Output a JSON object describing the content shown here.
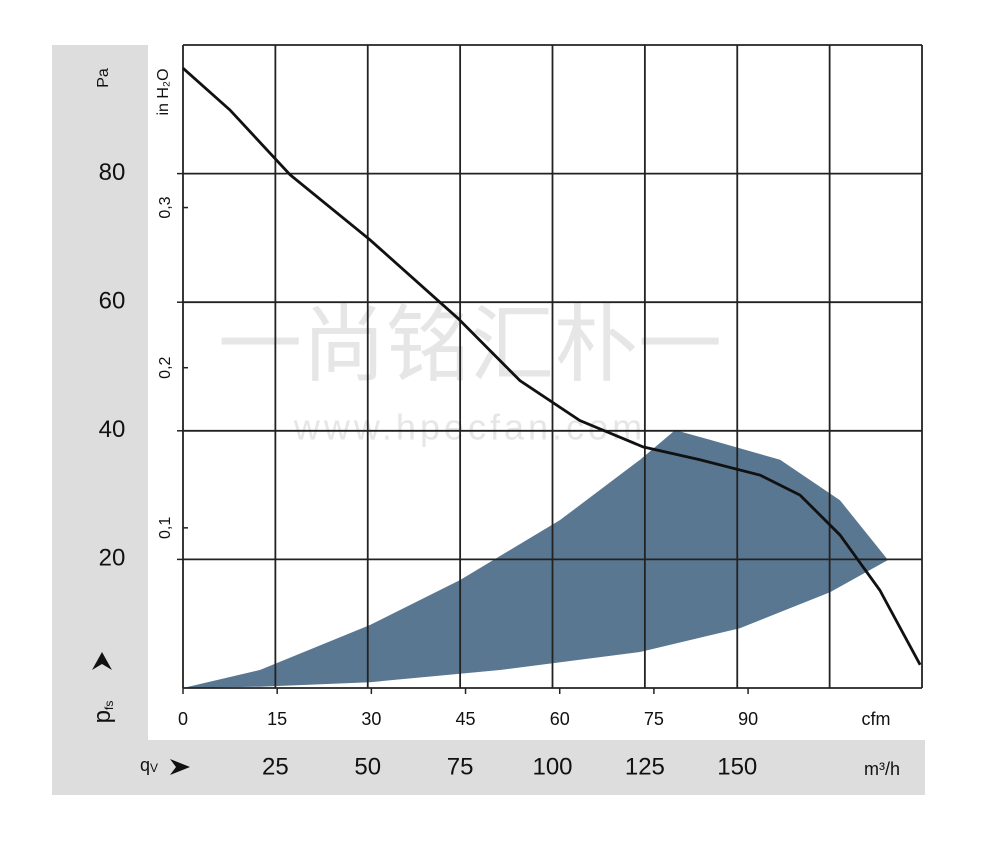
{
  "chart_data": {
    "type": "line",
    "watermark": "一尚铭汇朴一",
    "watermark_url": "www.hpecfan.com",
    "x_label": "q",
    "x_label_sub": "V",
    "x_unit": "m³/h",
    "x2_unit": "cfm",
    "y_label": "p",
    "y_label_sub": "fs",
    "y_unit": "Pa",
    "y2_unit": "in H₂O",
    "xlim": [
      0,
      200
    ],
    "xticks": [
      25,
      50,
      75,
      100,
      125,
      150
    ],
    "xgrid": [
      25,
      50,
      75,
      100,
      125,
      150,
      175,
      200
    ],
    "x2lim": [
      0,
      117.7
    ],
    "x2ticks": [
      0,
      15,
      30,
      45,
      60,
      75,
      90
    ],
    "ylim": [
      0,
      100
    ],
    "yticks": [
      20,
      40,
      60,
      80
    ],
    "y2lim": [
      0,
      0.4015
    ],
    "y2ticks": [
      {
        "value": 0.1,
        "label": "0,1"
      },
      {
        "value": 0.2,
        "label": "0,2"
      },
      {
        "value": 0.3,
        "label": "0,3"
      }
    ],
    "grid": true,
    "area": {
      "color": "#5a7791",
      "x": [
        0,
        20.8,
        50.6,
        75,
        102,
        123.7,
        133.2,
        142.6,
        161.6,
        177.8,
        190.8,
        175.1,
        150.7,
        123.7,
        85.8,
        50.6,
        20.8,
        0
      ],
      "y": [
        0,
        2.8,
        9.8,
        16.8,
        26.1,
        35.5,
        40.1,
        38.6,
        35.5,
        29.2,
        19.9,
        14.9,
        9.3,
        5.6,
        2.8,
        0.9,
        0.2,
        0
      ]
    },
    "curve": {
      "color": "#111111",
      "x": [
        0,
        12.7,
        29,
        50.6,
        74.4,
        91.2,
        107.4,
        124.5,
        139.9,
        156.2,
        167,
        177.8,
        188.6,
        199.5
      ],
      "y": [
        96.4,
        89.9,
        79.8,
        69.7,
        57.5,
        47.8,
        41.6,
        37.5,
        35.5,
        33.1,
        30,
        23.8,
        15.2,
        3.6
      ]
    }
  }
}
